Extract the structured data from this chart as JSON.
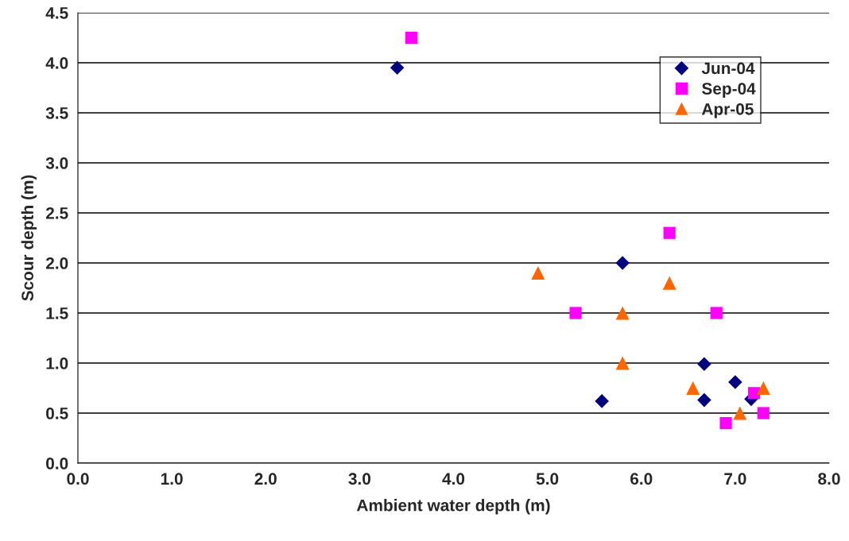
{
  "chart_data": {
    "type": "scatter",
    "xlabel": "Ambient water depth (m)",
    "ylabel": "Scour depth (m)",
    "xlim": [
      0,
      8
    ],
    "xticks": [
      {
        "value": 0,
        "label": "0.0"
      },
      {
        "value": 1,
        "label": "1.0"
      },
      {
        "value": 2,
        "label": "2.0"
      },
      {
        "value": 3,
        "label": "3.0"
      },
      {
        "value": 4,
        "label": "4.0"
      },
      {
        "value": 5,
        "label": "5.0"
      },
      {
        "value": 6,
        "label": "6.0"
      },
      {
        "value": 7,
        "label": "7.0"
      },
      {
        "value": 8,
        "label": "8.0"
      }
    ],
    "ylim": [
      0,
      4.5
    ],
    "yticks": [
      {
        "value": 0,
        "label": "0.0"
      },
      0.5,
      {
        "value": 1,
        "label": "1.0"
      },
      1.5,
      {
        "value": 2,
        "label": "2.0"
      },
      2.5,
      {
        "value": 3,
        "label": "3.0"
      },
      3.5,
      {
        "value": 4,
        "label": "4.0"
      },
      4.5
    ],
    "grid": "y",
    "legend": "top right",
    "series": [
      {
        "name": "Jun-04",
        "color": "#000080",
        "marker": "diamond",
        "x": [
          3.4,
          5.8,
          5.58,
          6.67,
          6.67,
          7.0,
          7.17
        ],
        "values": [
          3.95,
          2.0,
          0.62,
          0.99,
          0.63,
          0.81,
          0.64
        ]
      },
      {
        "name": "Sep-04",
        "color": "#ff00ff",
        "marker": "square",
        "x": [
          3.55,
          6.3,
          5.3,
          6.8,
          7.2,
          7.3,
          6.9
        ],
        "values": [
          4.25,
          2.3,
          1.5,
          1.5,
          0.7,
          0.5,
          0.4
        ]
      },
      {
        "name": "Apr-05",
        "color": "#ff6600",
        "marker": "triangle",
        "x": [
          4.9,
          6.3,
          5.8,
          5.8,
          6.55,
          7.05,
          7.3
        ],
        "values": [
          1.9,
          1.8,
          1.5,
          1.0,
          0.75,
          0.5,
          0.75
        ]
      }
    ]
  }
}
